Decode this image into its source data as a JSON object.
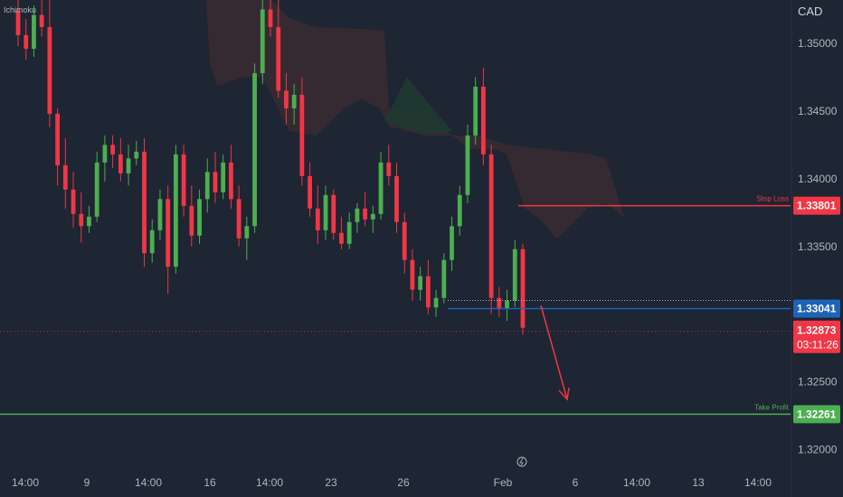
{
  "indicator": "Ichimoku",
  "currency": "CAD",
  "chart_data": {
    "type": "candlestick",
    "ylim": [
      1.3165,
      1.3532
    ],
    "y_ticks": [
      "1.35000",
      "1.34500",
      "1.34000",
      "1.33500",
      "1.32500",
      "1.32000"
    ],
    "x_ticks": [
      "14:00",
      "9",
      "14:00",
      "16",
      "14:00",
      "23",
      "26",
      "Feb",
      "6",
      "14:00",
      "13",
      "14:00"
    ],
    "levels": [
      {
        "name": "Stop Loss",
        "value": "1.33801",
        "color": "#f23645"
      },
      {
        "name": "Entry",
        "value": "1.33041",
        "color": "#1e63b8"
      },
      {
        "name": "Take Profit",
        "value": "1.32261",
        "color": "#4caf50"
      }
    ],
    "current_price": {
      "value": "1.32873",
      "countdown": "03:11:26",
      "color": "#f23645"
    },
    "entry_marker": "",
    "candles": [
      [
        1.3524,
        1.3532,
        1.3498,
        1.3506
      ],
      [
        1.3506,
        1.3518,
        1.3488,
        1.3496
      ],
      [
        1.3496,
        1.3528,
        1.349,
        1.3521
      ],
      [
        1.3521,
        1.3532,
        1.3505,
        1.3512
      ],
      [
        1.3512,
        1.3532,
        1.3438,
        1.3448
      ],
      [
        1.3448,
        1.3452,
        1.3395,
        1.341
      ],
      [
        1.341,
        1.343,
        1.3378,
        1.3392
      ],
      [
        1.3392,
        1.3405,
        1.3364,
        1.3374
      ],
      [
        1.3374,
        1.339,
        1.3353,
        1.3365
      ],
      [
        1.3365,
        1.338,
        1.336,
        1.3372
      ],
      [
        1.3372,
        1.342,
        1.3368,
        1.3412
      ],
      [
        1.3412,
        1.3432,
        1.3398,
        1.3425
      ],
      [
        1.3425,
        1.3432,
        1.3408,
        1.3418
      ],
      [
        1.3418,
        1.343,
        1.3398,
        1.3404
      ],
      [
        1.3404,
        1.3425,
        1.3395,
        1.3415
      ],
      [
        1.3415,
        1.3428,
        1.341,
        1.342
      ],
      [
        1.342,
        1.343,
        1.3335,
        1.3345
      ],
      [
        1.3345,
        1.337,
        1.3338,
        1.3362
      ],
      [
        1.3362,
        1.3392,
        1.3355,
        1.3385
      ],
      [
        1.3385,
        1.3395,
        1.3315,
        1.3335
      ],
      [
        1.3335,
        1.3425,
        1.333,
        1.3418
      ],
      [
        1.3418,
        1.3425,
        1.3372,
        1.338
      ],
      [
        1.338,
        1.3395,
        1.335,
        1.3358
      ],
      [
        1.3358,
        1.3392,
        1.3352,
        1.3385
      ],
      [
        1.3385,
        1.3415,
        1.3375,
        1.3405
      ],
      [
        1.3405,
        1.342,
        1.3382,
        1.339
      ],
      [
        1.339,
        1.3418,
        1.3385,
        1.3412
      ],
      [
        1.3412,
        1.3425,
        1.3378,
        1.3385
      ],
      [
        1.3385,
        1.3395,
        1.335,
        1.3356
      ],
      [
        1.3356,
        1.3372,
        1.334,
        1.3365
      ],
      [
        1.3365,
        1.3485,
        1.336,
        1.3478
      ],
      [
        1.3478,
        1.3532,
        1.347,
        1.3525
      ],
      [
        1.3525,
        1.3532,
        1.3505,
        1.3512
      ],
      [
        1.3512,
        1.3532,
        1.346,
        1.3465
      ],
      [
        1.3465,
        1.3478,
        1.344,
        1.3452
      ],
      [
        1.3452,
        1.347,
        1.344,
        1.3462
      ],
      [
        1.3462,
        1.3475,
        1.3395,
        1.3402
      ],
      [
        1.3402,
        1.3412,
        1.3372,
        1.3378
      ],
      [
        1.3378,
        1.3395,
        1.3352,
        1.3362
      ],
      [
        1.3362,
        1.3395,
        1.3355,
        1.3388
      ],
      [
        1.3388,
        1.3392,
        1.3355,
        1.336
      ],
      [
        1.336,
        1.3372,
        1.3348,
        1.3352
      ],
      [
        1.3352,
        1.3375,
        1.3348,
        1.3368
      ],
      [
        1.3368,
        1.3382,
        1.336,
        1.3378
      ],
      [
        1.3378,
        1.339,
        1.3365,
        1.337
      ],
      [
        1.337,
        1.338,
        1.336,
        1.3374
      ],
      [
        1.3374,
        1.342,
        1.337,
        1.3412
      ],
      [
        1.3412,
        1.3425,
        1.3395,
        1.3402
      ],
      [
        1.3402,
        1.3412,
        1.336,
        1.3368
      ],
      [
        1.3368,
        1.3375,
        1.333,
        1.334
      ],
      [
        1.334,
        1.3348,
        1.331,
        1.3318
      ],
      [
        1.3318,
        1.3335,
        1.331,
        1.3328
      ],
      [
        1.3328,
        1.334,
        1.33,
        1.3305
      ],
      [
        1.3305,
        1.3318,
        1.3298,
        1.3312
      ],
      [
        1.3312,
        1.3345,
        1.3308,
        1.334
      ],
      [
        1.334,
        1.3372,
        1.3332,
        1.3365
      ],
      [
        1.3365,
        1.3395,
        1.3358,
        1.3388
      ],
      [
        1.3388,
        1.344,
        1.3382,
        1.3432
      ],
      [
        1.3432,
        1.3475,
        1.3425,
        1.3468
      ],
      [
        1.3468,
        1.3482,
        1.341,
        1.3418
      ],
      [
        1.3418,
        1.3425,
        1.33,
        1.3312
      ],
      [
        1.3312,
        1.332,
        1.3298,
        1.3304
      ],
      [
        1.3304,
        1.3318,
        1.3295,
        1.331
      ],
      [
        1.331,
        1.3355,
        1.3305,
        1.3348
      ],
      [
        1.3348,
        1.3352,
        1.3285,
        1.329
      ]
    ]
  }
}
